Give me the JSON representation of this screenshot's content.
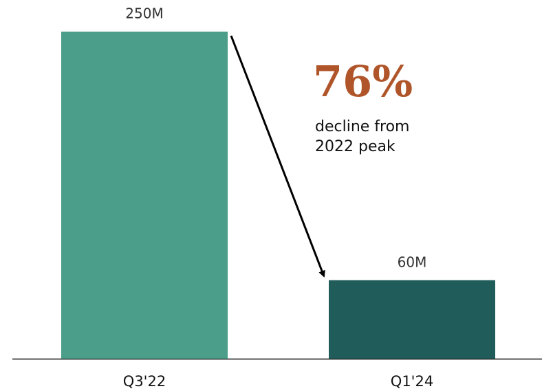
{
  "chart_data": {
    "type": "bar",
    "categories": [
      "Q3'22",
      "Q1'24"
    ],
    "values": [
      250,
      60
    ],
    "value_labels": [
      "250M",
      "60M"
    ],
    "colors": [
      "#4a9e8a",
      "#1f5c5a"
    ],
    "annotations": [
      "76%",
      "decline from",
      "2022 peak"
    ]
  }
}
